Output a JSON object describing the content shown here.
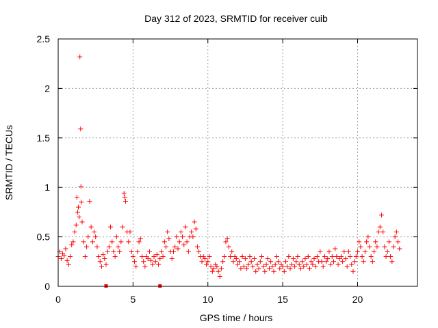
{
  "chart_data": {
    "type": "scatter",
    "title": "Day 312 of 2023, SRMTID for receiver cuib",
    "xlabel": "GPS time / hours",
    "ylabel": "SRMTID / TECUs",
    "xlim": [
      0,
      24
    ],
    "ylim": [
      0,
      2.5
    ],
    "xticks": [
      0,
      5,
      10,
      15,
      20
    ],
    "yticks": [
      0,
      0.5,
      1,
      1.5,
      2,
      2.5
    ],
    "xtick_labels": [
      "0",
      "5",
      "10",
      "15",
      "20"
    ],
    "ytick_labels": [
      "0",
      "0.5",
      "1",
      "1.5",
      "2",
      "2.5"
    ],
    "grid": true,
    "marker": "+",
    "color": "#ff0000",
    "series": [
      {
        "name": "SRMTID",
        "points": [
          [
            0.0,
            0.3
          ],
          [
            0.1,
            0.35
          ],
          [
            0.2,
            0.28
          ],
          [
            0.3,
            0.33
          ],
          [
            0.4,
            0.31
          ],
          [
            0.5,
            0.38
          ],
          [
            0.6,
            0.26
          ],
          [
            0.7,
            0.22
          ],
          [
            0.8,
            0.3
          ],
          [
            0.9,
            0.42
          ],
          [
            1.0,
            0.45
          ],
          [
            1.1,
            0.55
          ],
          [
            1.2,
            0.62
          ],
          [
            1.25,
            0.9
          ],
          [
            1.3,
            0.75
          ],
          [
            1.35,
            0.8
          ],
          [
            1.4,
            0.7
          ],
          [
            1.45,
            2.32
          ],
          [
            1.5,
            1.59
          ],
          [
            1.52,
            1.01
          ],
          [
            1.55,
            0.85
          ],
          [
            1.6,
            0.65
          ],
          [
            1.7,
            0.45
          ],
          [
            1.8,
            0.3
          ],
          [
            1.9,
            0.4
          ],
          [
            2.0,
            0.5
          ],
          [
            2.1,
            0.86
          ],
          [
            2.2,
            0.6
          ],
          [
            2.3,
            0.45
          ],
          [
            2.4,
            0.55
          ],
          [
            2.5,
            0.5
          ],
          [
            2.6,
            0.4
          ],
          [
            2.7,
            0.3
          ],
          [
            2.8,
            0.25
          ],
          [
            2.9,
            0.2
          ],
          [
            3.0,
            0.32
          ],
          [
            3.1,
            0.28
          ],
          [
            3.2,
            0.22
          ],
          [
            3.3,
            0.35
          ],
          [
            3.4,
            0.4
          ],
          [
            3.5,
            0.6
          ],
          [
            3.6,
            0.45
          ],
          [
            3.7,
            0.35
          ],
          [
            3.8,
            0.3
          ],
          [
            3.9,
            0.5
          ],
          [
            4.0,
            0.4
          ],
          [
            4.1,
            0.35
          ],
          [
            4.2,
            0.45
          ],
          [
            4.3,
            0.6
          ],
          [
            4.4,
            0.94
          ],
          [
            4.45,
            0.9
          ],
          [
            4.5,
            0.86
          ],
          [
            4.6,
            0.55
          ],
          [
            4.7,
            0.45
          ],
          [
            4.8,
            0.55
          ],
          [
            4.9,
            0.35
          ],
          [
            5.0,
            0.3
          ],
          [
            5.1,
            0.25
          ],
          [
            5.2,
            0.2
          ],
          [
            5.3,
            0.35
          ],
          [
            5.4,
            0.45
          ],
          [
            5.5,
            0.48
          ],
          [
            5.6,
            0.3
          ],
          [
            5.7,
            0.25
          ],
          [
            5.8,
            0.2
          ],
          [
            5.9,
            0.3
          ],
          [
            6.0,
            0.28
          ],
          [
            6.1,
            0.35
          ],
          [
            6.2,
            0.26
          ],
          [
            6.3,
            0.22
          ],
          [
            6.4,
            0.3
          ],
          [
            6.5,
            0.25
          ],
          [
            6.6,
            0.32
          ],
          [
            6.7,
            0.22
          ],
          [
            6.8,
            0.28
          ],
          [
            6.9,
            0.35
          ],
          [
            7.0,
            0.3
          ],
          [
            7.1,
            0.45
          ],
          [
            7.2,
            0.4
          ],
          [
            7.3,
            0.55
          ],
          [
            7.4,
            0.48
          ],
          [
            7.5,
            0.35
          ],
          [
            7.6,
            0.28
          ],
          [
            7.7,
            0.35
          ],
          [
            7.8,
            0.4
          ],
          [
            7.9,
            0.5
          ],
          [
            8.0,
            0.38
          ],
          [
            8.1,
            0.45
          ],
          [
            8.2,
            0.55
          ],
          [
            8.3,
            0.5
          ],
          [
            8.4,
            0.42
          ],
          [
            8.5,
            0.6
          ],
          [
            8.6,
            0.45
          ],
          [
            8.7,
            0.35
          ],
          [
            8.8,
            0.5
          ],
          [
            8.9,
            0.55
          ],
          [
            9.0,
            0.5
          ],
          [
            9.1,
            0.65
          ],
          [
            9.2,
            0.58
          ],
          [
            9.3,
            0.4
          ],
          [
            9.4,
            0.35
          ],
          [
            9.5,
            0.3
          ],
          [
            9.6,
            0.25
          ],
          [
            9.7,
            0.3
          ],
          [
            9.8,
            0.28
          ],
          [
            9.9,
            0.22
          ],
          [
            10.0,
            0.25
          ],
          [
            10.1,
            0.3
          ],
          [
            10.2,
            0.2
          ],
          [
            10.3,
            0.15
          ],
          [
            10.4,
            0.18
          ],
          [
            10.5,
            0.22
          ],
          [
            10.6,
            0.2
          ],
          [
            10.7,
            0.15
          ],
          [
            10.8,
            0.1
          ],
          [
            10.9,
            0.18
          ],
          [
            11.0,
            0.25
          ],
          [
            11.1,
            0.3
          ],
          [
            11.2,
            0.45
          ],
          [
            11.3,
            0.48
          ],
          [
            11.4,
            0.4
          ],
          [
            11.5,
            0.3
          ],
          [
            11.6,
            0.35
          ],
          [
            11.7,
            0.25
          ],
          [
            11.8,
            0.3
          ],
          [
            11.9,
            0.28
          ],
          [
            12.0,
            0.22
          ],
          [
            12.1,
            0.25
          ],
          [
            12.2,
            0.18
          ],
          [
            12.3,
            0.3
          ],
          [
            12.4,
            0.2
          ],
          [
            12.5,
            0.28
          ],
          [
            12.6,
            0.18
          ],
          [
            12.7,
            0.22
          ],
          [
            12.8,
            0.3
          ],
          [
            12.9,
            0.25
          ],
          [
            13.0,
            0.2
          ],
          [
            13.1,
            0.28
          ],
          [
            13.2,
            0.15
          ],
          [
            13.3,
            0.22
          ],
          [
            13.4,
            0.18
          ],
          [
            13.5,
            0.25
          ],
          [
            13.6,
            0.3
          ],
          [
            13.7,
            0.2
          ],
          [
            13.8,
            0.15
          ],
          [
            13.9,
            0.22
          ],
          [
            14.0,
            0.28
          ],
          [
            14.1,
            0.18
          ],
          [
            14.2,
            0.25
          ],
          [
            14.3,
            0.2
          ],
          [
            14.4,
            0.15
          ],
          [
            14.5,
            0.22
          ],
          [
            14.6,
            0.3
          ],
          [
            14.7,
            0.25
          ],
          [
            14.8,
            0.18
          ],
          [
            14.9,
            0.22
          ],
          [
            15.0,
            0.2
          ],
          [
            15.1,
            0.15
          ],
          [
            15.2,
            0.25
          ],
          [
            15.3,
            0.2
          ],
          [
            15.4,
            0.3
          ],
          [
            15.5,
            0.18
          ],
          [
            15.6,
            0.22
          ],
          [
            15.7,
            0.28
          ],
          [
            15.8,
            0.2
          ],
          [
            15.9,
            0.25
          ],
          [
            16.0,
            0.3
          ],
          [
            16.1,
            0.22
          ],
          [
            16.2,
            0.18
          ],
          [
            16.3,
            0.25
          ],
          [
            16.4,
            0.2
          ],
          [
            16.5,
            0.28
          ],
          [
            16.6,
            0.22
          ],
          [
            16.7,
            0.3
          ],
          [
            16.8,
            0.18
          ],
          [
            16.9,
            0.25
          ],
          [
            17.0,
            0.22
          ],
          [
            17.1,
            0.28
          ],
          [
            17.2,
            0.2
          ],
          [
            17.3,
            0.3
          ],
          [
            17.4,
            0.25
          ],
          [
            17.5,
            0.35
          ],
          [
            17.6,
            0.25
          ],
          [
            17.7,
            0.2
          ],
          [
            17.8,
            0.3
          ],
          [
            17.9,
            0.25
          ],
          [
            18.0,
            0.28
          ],
          [
            18.1,
            0.35
          ],
          [
            18.2,
            0.22
          ],
          [
            18.3,
            0.3
          ],
          [
            18.4,
            0.25
          ],
          [
            18.5,
            0.38
          ],
          [
            18.6,
            0.3
          ],
          [
            18.7,
            0.22
          ],
          [
            18.8,
            0.28
          ],
          [
            18.9,
            0.3
          ],
          [
            19.0,
            0.25
          ],
          [
            19.1,
            0.35
          ],
          [
            19.2,
            0.28
          ],
          [
            19.3,
            0.2
          ],
          [
            19.4,
            0.35
          ],
          [
            19.5,
            0.3
          ],
          [
            19.6,
            0.22
          ],
          [
            19.7,
            0.15
          ],
          [
            19.8,
            0.25
          ],
          [
            19.9,
            0.3
          ],
          [
            20.0,
            0.35
          ],
          [
            20.1,
            0.45
          ],
          [
            20.2,
            0.4
          ],
          [
            20.3,
            0.3
          ],
          [
            20.4,
            0.25
          ],
          [
            20.5,
            0.35
          ],
          [
            20.6,
            0.45
          ],
          [
            20.7,
            0.5
          ],
          [
            20.8,
            0.4
          ],
          [
            20.9,
            0.3
          ],
          [
            21.0,
            0.25
          ],
          [
            21.1,
            0.35
          ],
          [
            21.2,
            0.45
          ],
          [
            21.3,
            0.4
          ],
          [
            21.4,
            0.55
          ],
          [
            21.5,
            0.6
          ],
          [
            21.6,
            0.72
          ],
          [
            21.7,
            0.55
          ],
          [
            21.8,
            0.4
          ],
          [
            21.9,
            0.3
          ],
          [
            22.0,
            0.35
          ],
          [
            22.1,
            0.45
          ],
          [
            22.2,
            0.3
          ],
          [
            22.3,
            0.25
          ],
          [
            22.4,
            0.4
          ],
          [
            22.5,
            0.5
          ],
          [
            22.6,
            0.55
          ],
          [
            22.7,
            0.45
          ],
          [
            22.8,
            0.38
          ]
        ]
      }
    ],
    "gap_markers": [
      3.2,
      6.8
    ]
  }
}
